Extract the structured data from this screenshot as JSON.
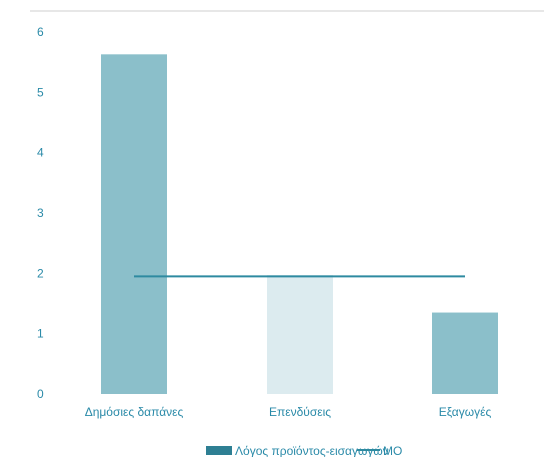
{
  "chart_data": {
    "type": "bar",
    "categories": [
      "Δημόσιες δαπάνες",
      "Επενδύσεις",
      "Εξαγωγές"
    ],
    "series": [
      {
        "name": "Λόγος προϊόντος-εισαγωγών",
        "values": [
          5.63,
          1.97,
          1.35
        ],
        "colors": [
          "#8bbfca",
          "#dcebef",
          "#8bbfca"
        ]
      },
      {
        "name": "ΜΟ",
        "type": "line",
        "values": [
          1.95,
          1.95,
          1.95
        ],
        "color": "#2e8aa0"
      }
    ],
    "yticks": [
      "0",
      "1",
      "2",
      "3",
      "4",
      "5",
      "6"
    ],
    "ylim": [
      0,
      6
    ],
    "legend_position": "bottom",
    "legend_swatch_color": "#2e7f93",
    "axis_color": "#2a8aa8"
  }
}
